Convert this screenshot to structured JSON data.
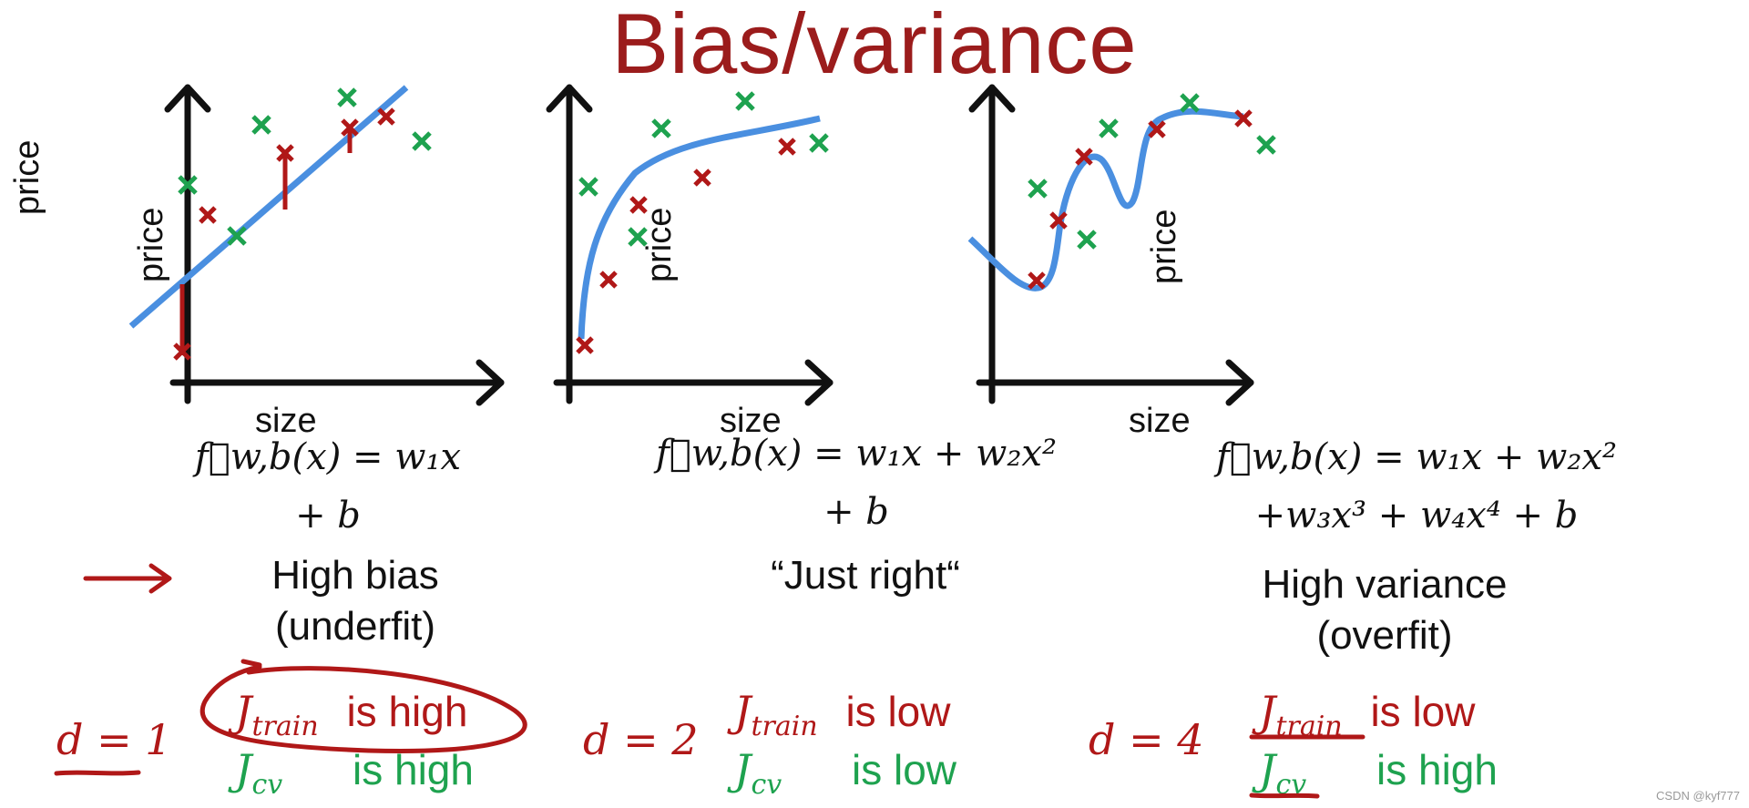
{
  "title": "Bias/variance",
  "panels": [
    {
      "xlabel": "size",
      "ylabel": "price",
      "formula_line1": "f⃗w,b(x) = w₁x",
      "formula_line2": "+ b",
      "label_line1": "High bias",
      "label_line2": "(underfit)",
      "degree": "d = 1",
      "train_text": "J",
      "train_sub": "train",
      "train_value": "is high",
      "cv_text": "J",
      "cv_sub": "cv",
      "cv_value": "is high"
    },
    {
      "xlabel": "size",
      "ylabel": "price",
      "formula_line1": "f⃗w,b(x) = w₁x + w₂x²",
      "formula_line2": "+ b",
      "label_line1": "“Just right“",
      "label_line2": "",
      "degree": "d = 2",
      "train_text": "J",
      "train_sub": "train",
      "train_value": "is low",
      "cv_text": "J",
      "cv_sub": "cv",
      "cv_value": "is low"
    },
    {
      "xlabel": "size",
      "ylabel": "price",
      "formula_line1": "f⃗w,b(x) = w₁x + w₂x²",
      "formula_line2": "+w₃x³ + w₄x⁴ + b",
      "label_line1": "High variance",
      "label_line2": "(overfit)",
      "degree": "d = 4",
      "train_text": "J",
      "train_sub": "train",
      "train_value": "is low",
      "cv_text": "J",
      "cv_sub": "cv",
      "cv_value": "is high"
    }
  ],
  "watermark": "CSDN @kyf777",
  "colors": {
    "title": "#9b1c1c",
    "train": "#b01818",
    "cv": "#1ea24f",
    "curve": "#4a8fe0",
    "axis": "#111111"
  }
}
